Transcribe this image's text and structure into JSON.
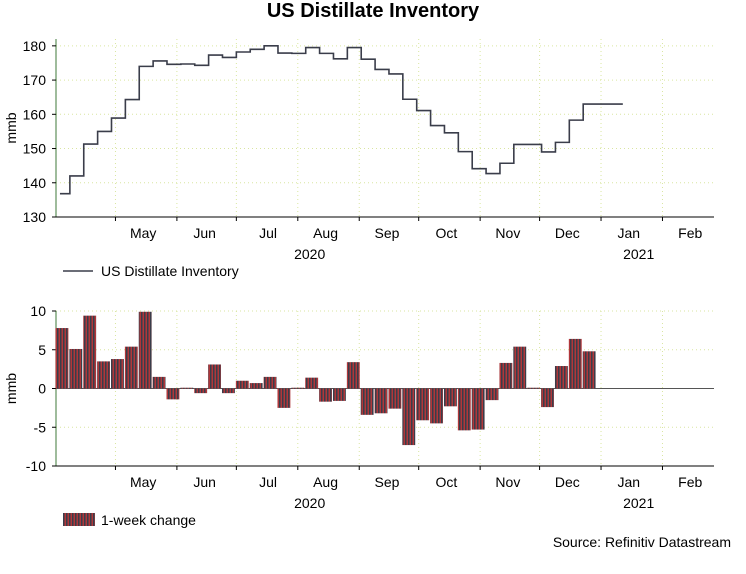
{
  "title": "US Distillate Inventory",
  "source": "Source: Refinitiv Datastream",
  "colors": {
    "line": "#3a3d4a",
    "bar_dark": "#3a3d4a",
    "bar_red": "#b0373a",
    "axis": "#000000",
    "grid": "#d9e6a0",
    "frame": "#5f8f5a"
  },
  "chart_data": [
    {
      "type": "line",
      "name": "inventory",
      "ylabel": "mmb",
      "ylim": [
        130,
        182
      ],
      "yticks": [
        130,
        140,
        150,
        160,
        170,
        180
      ],
      "x_unit": "days since 2020-04-01",
      "xlim": [
        0,
        332
      ],
      "month_labels": [
        "May",
        "Jun",
        "Jul",
        "Aug",
        "Sep",
        "Oct",
        "Nov",
        "Dec",
        "Jan",
        "Feb"
      ],
      "month_label_days": [
        44,
        75,
        107,
        136,
        167,
        197,
        228,
        258,
        289,
        320
      ],
      "month_boundaries": [
        30,
        61,
        91,
        122,
        153,
        183,
        214,
        244,
        275,
        306
      ],
      "year_labels": [
        "2020",
        "2021"
      ],
      "year_label_days": [
        128,
        294
      ],
      "legend": "US Distillate Inventory",
      "x": [
        2,
        7,
        14,
        21,
        28,
        35,
        42,
        49,
        56,
        63,
        70,
        77,
        84,
        91,
        98,
        105,
        112,
        119,
        126,
        133,
        140,
        147,
        154,
        161,
        168,
        175,
        182,
        189,
        196,
        203,
        210,
        217,
        224,
        231,
        238,
        245,
        252,
        259,
        266,
        273,
        280,
        286
      ],
      "values": [
        136.8,
        142.0,
        151.3,
        155.0,
        158.9,
        164.3,
        174.0,
        175.6,
        174.6,
        174.7,
        174.3,
        177.3,
        176.6,
        178.2,
        179.0,
        180.0,
        177.9,
        177.8,
        179.5,
        177.8,
        176.2,
        179.5,
        176.1,
        173.1,
        171.8,
        164.4,
        161.1,
        156.7,
        154.6,
        149.1,
        144.1,
        142.7,
        145.7,
        151.2,
        151.2,
        149.0,
        151.8,
        158.3,
        163.0,
        163.0,
        163.0,
        163.0
      ]
    },
    {
      "type": "bar",
      "name": "weekly_change",
      "ylabel": "mmb",
      "ylim": [
        -10,
        10
      ],
      "yticks": [
        -10,
        -5,
        0,
        5,
        10
      ],
      "legend": "1-week change",
      "x": [
        3,
        10,
        17,
        24,
        31,
        38,
        45,
        52,
        59,
        66,
        73,
        80,
        87,
        94,
        101,
        108,
        115,
        122,
        129,
        136,
        143,
        150,
        157,
        164,
        171,
        178,
        185,
        192,
        199,
        206,
        213,
        220,
        227,
        234,
        241,
        248,
        255,
        262,
        269
      ],
      "values": [
        7.8,
        5.1,
        9.4,
        3.5,
        3.8,
        5.4,
        9.9,
        1.5,
        -1.4,
        0.1,
        -0.6,
        3.1,
        -0.6,
        1.0,
        0.7,
        1.5,
        -2.5,
        0.1,
        1.4,
        -1.7,
        -1.6,
        3.4,
        -3.4,
        -3.2,
        -2.6,
        -7.3,
        -4.1,
        -4.5,
        -2.3,
        -5.4,
        -5.3,
        -1.5,
        3.3,
        5.4,
        0.1,
        -2.4,
        2.9,
        6.4,
        4.8
      ]
    }
  ]
}
